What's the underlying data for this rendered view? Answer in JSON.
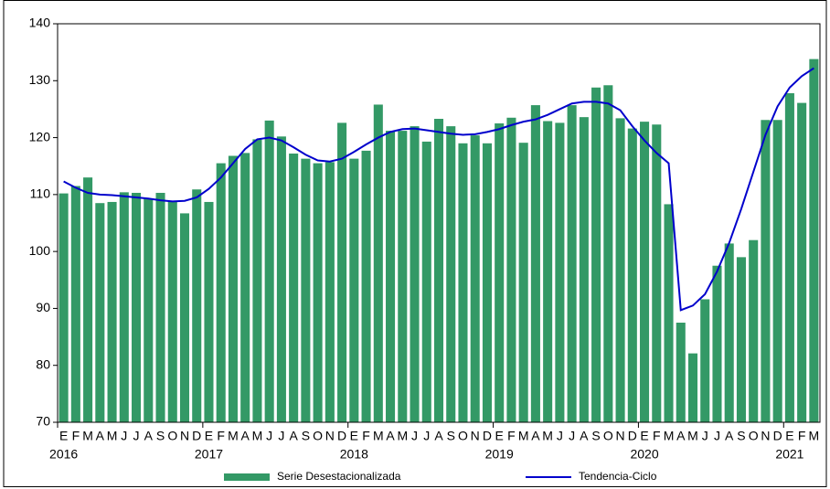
{
  "chart_data": {
    "type": "bar-line",
    "categories": [
      "E",
      "F",
      "M",
      "A",
      "M",
      "J",
      "J",
      "A",
      "S",
      "O",
      "N",
      "D",
      "E",
      "F",
      "M",
      "A",
      "M",
      "J",
      "J",
      "A",
      "S",
      "O",
      "N",
      "D",
      "E",
      "F",
      "M",
      "A",
      "M",
      "J",
      "J",
      "A",
      "S",
      "O",
      "N",
      "D",
      "E",
      "F",
      "M",
      "A",
      "M",
      "J",
      "J",
      "A",
      "S",
      "O",
      "N",
      "D",
      "E",
      "F",
      "M",
      "A",
      "M",
      "J",
      "J",
      "A",
      "S",
      "O",
      "N",
      "D",
      "E",
      "F",
      "M"
    ],
    "years": [
      "2016",
      null,
      null,
      null,
      null,
      null,
      null,
      null,
      null,
      null,
      null,
      null,
      "2017",
      null,
      null,
      null,
      null,
      null,
      null,
      null,
      null,
      null,
      null,
      null,
      "2018",
      null,
      null,
      null,
      null,
      null,
      null,
      null,
      null,
      null,
      null,
      null,
      "2019",
      null,
      null,
      null,
      null,
      null,
      null,
      null,
      null,
      null,
      null,
      null,
      "2020",
      null,
      null,
      null,
      null,
      null,
      null,
      null,
      null,
      null,
      null,
      null,
      "2021",
      null,
      null
    ],
    "series": [
      {
        "name": "Serie Desestacionalizada",
        "type": "bar",
        "color": "#339966",
        "values": [
          110.2,
          111.5,
          113,
          108.5,
          108.7,
          110.4,
          110.3,
          109.3,
          110.3,
          108.8,
          106.7,
          110.9,
          108.7,
          115.5,
          116.8,
          117.3,
          119.7,
          123,
          120.2,
          117.2,
          116.3,
          115.5,
          115.7,
          122.6,
          116.3,
          117.7,
          125.8,
          121.2,
          121.2,
          122,
          119.3,
          123.3,
          122,
          119,
          120.4,
          119,
          122.5,
          123.5,
          119.1,
          125.7,
          122.9,
          122.6,
          125.7,
          123.6,
          128.8,
          129.2,
          123.4,
          121.6,
          122.8,
          122.3,
          108.3,
          87.5,
          82.1,
          91.6,
          97.5,
          101.4,
          99,
          102,
          123.1,
          123.1,
          127.8,
          126.1,
          133.8
        ]
      },
      {
        "name": "Tendencia-Ciclo",
        "type": "line",
        "color": "#0000cc",
        "values": [
          112.3,
          111.2,
          110.3,
          110,
          109.9,
          109.7,
          109.5,
          109.3,
          109,
          108.8,
          108.9,
          109.5,
          111,
          113,
          115.5,
          118,
          119.7,
          120,
          119.5,
          118.3,
          117,
          116,
          115.8,
          116.3,
          117.5,
          118.8,
          120,
          121,
          121.5,
          121.6,
          121.3,
          121,
          120.7,
          120.5,
          120.6,
          121,
          121.5,
          122.2,
          122.8,
          123.2,
          124,
          125,
          126,
          126.3,
          126.3,
          126,
          124.8,
          122,
          119.5,
          117.3,
          115.5,
          89.7,
          90.5,
          92.5,
          96.5,
          101.5,
          107.5,
          114,
          120.5,
          125.5,
          128.8,
          130.8,
          132.2
        ]
      }
    ],
    "ylim": [
      70,
      140
    ],
    "yticks": [
      70,
      80,
      90,
      100,
      110,
      120,
      130,
      140
    ],
    "legend": "bottom"
  }
}
